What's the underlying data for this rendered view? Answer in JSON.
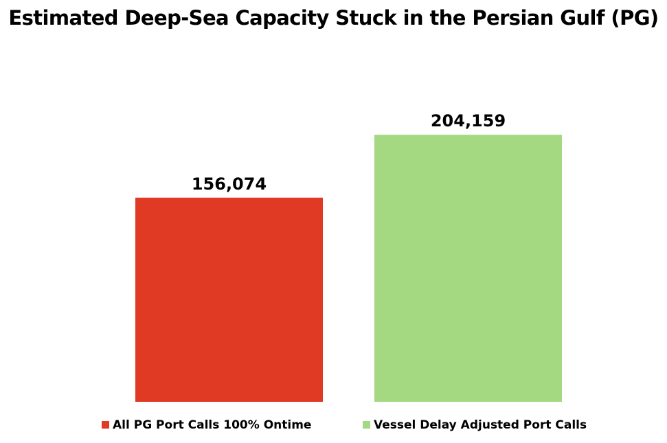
{
  "chart_data": {
    "type": "bar",
    "title": "Estimated Deep-Sea Capacity Stuck in the Persian Gulf (PG)",
    "categories": [
      "All PG Port Calls 100% Ontime",
      "Vessel Delay Adjusted Port Calls"
    ],
    "values": [
      156074,
      204159
    ],
    "data_labels": [
      "156,074",
      "204,159"
    ],
    "colors": [
      "#e03a24",
      "#a4d982"
    ],
    "ylim": [
      0,
      230000
    ],
    "grid": false,
    "legend": {
      "placement": "bottom",
      "entries": [
        "All PG Port Calls 100% Ontime",
        "Vessel Delay Adjusted Port Calls"
      ]
    }
  }
}
